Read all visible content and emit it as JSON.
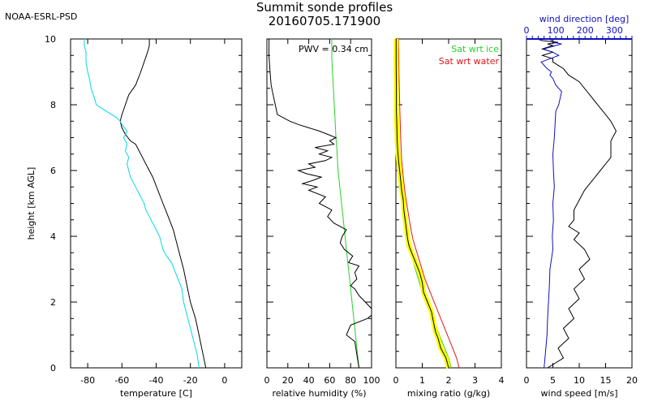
{
  "header": {
    "org": "NOAA-ESRL-PSD",
    "title_line1": "Summit sonde profiles",
    "title_line2": "20160705.171900"
  },
  "colors": {
    "black": "#000000",
    "cyan": "#00d8e8",
    "green": "#28d028",
    "red": "#e01818",
    "blue": "#1010c0",
    "yellow": "#ffff00"
  },
  "chart_data": [
    {
      "id": "temperature",
      "type": "line",
      "xlabel": "temperature [C]",
      "ylabel": "height [km AGL]",
      "xlim": [
        -90,
        10
      ],
      "ylim": [
        0,
        10
      ],
      "xticks": [
        -80,
        -60,
        -40,
        -20,
        0
      ],
      "yticks": [
        0,
        2,
        4,
        6,
        8,
        10
      ],
      "series": [
        {
          "name": "temperature",
          "color": "#000000",
          "x": [
            -11,
            -13,
            -15,
            -17,
            -20,
            -22,
            -24,
            -26,
            -28,
            -30,
            -33,
            -36,
            -39,
            -42,
            -45,
            -48,
            -52,
            -55,
            -58,
            -60,
            -61,
            -60,
            -58,
            -56,
            -52,
            -49,
            -47,
            -45,
            -44,
            -44
          ],
          "y": [
            0,
            0.5,
            1.0,
            1.5,
            2.0,
            2.5,
            3.0,
            3.4,
            3.8,
            4.2,
            4.6,
            5.0,
            5.4,
            5.8,
            6.1,
            6.4,
            6.8,
            6.9,
            7.1,
            7.3,
            7.5,
            7.7,
            8.0,
            8.3,
            8.6,
            9.0,
            9.3,
            9.6,
            9.8,
            10
          ]
        },
        {
          "name": "dewpoint",
          "color": "#00d8e8",
          "x": [
            -15,
            -16,
            -18,
            -20,
            -22,
            -24,
            -25,
            -28,
            -31,
            -34,
            -36,
            -37,
            -38,
            -40,
            -42,
            -44,
            -46,
            -47,
            -49,
            -51,
            -53,
            -55,
            -56,
            -57,
            -56,
            -58,
            -57,
            -59,
            -57,
            -60,
            -61,
            -63,
            -66,
            -69,
            -72,
            -75,
            -76,
            -78,
            -79,
            -80,
            -81,
            -81,
            -82,
            -82
          ],
          "y": [
            0,
            0.4,
            0.8,
            1.2,
            1.6,
            2.0,
            2.4,
            2.8,
            3.2,
            3.4,
            3.6,
            3.8,
            4.0,
            4.2,
            4.4,
            4.6,
            4.8,
            5.0,
            5.2,
            5.4,
            5.6,
            5.8,
            6.0,
            6.2,
            6.4,
            6.6,
            6.8,
            7.0,
            7.2,
            7.4,
            7.5,
            7.6,
            7.7,
            7.8,
            7.9,
            8.0,
            8.2,
            8.5,
            8.8,
            9.0,
            9.3,
            9.6,
            9.8,
            10
          ]
        }
      ]
    },
    {
      "id": "relative_humidity",
      "type": "line",
      "xlabel": "relative humidity (%)",
      "xlim": [
        0,
        100
      ],
      "ylim": [
        0,
        10
      ],
      "xticks": [
        0,
        20,
        40,
        60,
        80,
        100
      ],
      "annotation": "PWV = 0.34 cm",
      "series": [
        {
          "name": "rh_ice",
          "color": "#28d028",
          "x": [
            88,
            86,
            84,
            82,
            80,
            78,
            76,
            74,
            72,
            70,
            68,
            67,
            66,
            65,
            64,
            63,
            62,
            62
          ],
          "y": [
            0,
            0.6,
            1.2,
            1.8,
            2.4,
            3.0,
            3.6,
            4.2,
            4.8,
            5.4,
            6.0,
            6.6,
            7.0,
            7.6,
            8.2,
            8.8,
            9.4,
            10
          ]
        },
        {
          "name": "rh",
          "color": "#000000",
          "x": [
            88,
            86,
            84,
            76,
            80,
            96,
            100,
            100,
            94,
            88,
            84,
            80,
            86,
            84,
            88,
            78,
            82,
            74,
            70,
            72,
            76,
            64,
            58,
            62,
            50,
            56,
            40,
            48,
            34,
            44,
            52,
            38,
            30,
            46,
            40,
            56,
            62,
            50,
            58,
            46,
            64,
            60,
            66,
            58,
            50,
            40,
            30,
            22,
            16,
            10,
            8,
            6,
            4,
            3,
            2,
            2
          ],
          "y": [
            0,
            0.4,
            0.8,
            1.0,
            1.3,
            1.5,
            1.6,
            1.8,
            2.0,
            2.2,
            2.4,
            2.5,
            2.7,
            2.9,
            3.1,
            3.2,
            3.4,
            3.6,
            3.8,
            4.0,
            4.2,
            4.4,
            4.6,
            4.8,
            5.0,
            5.2,
            5.4,
            5.5,
            5.6,
            5.7,
            5.8,
            5.9,
            6.0,
            6.1,
            6.2,
            6.3,
            6.4,
            6.5,
            6.6,
            6.7,
            6.8,
            6.9,
            7.0,
            7.1,
            7.2,
            7.3,
            7.4,
            7.5,
            7.6,
            7.7,
            8.0,
            8.3,
            8.6,
            9.0,
            9.5,
            10
          ]
        }
      ]
    },
    {
      "id": "mixing_ratio",
      "type": "line",
      "xlabel": "mixing ratio (g/kg)",
      "xlim": [
        0,
        4
      ],
      "ylim": [
        0,
        10
      ],
      "xticks": [
        0,
        1,
        2,
        3,
        4
      ],
      "legend": [
        "Sat wrt ice",
        "Sat wrt water"
      ],
      "series": [
        {
          "name": "Sat wrt water",
          "color": "#e01818",
          "x": [
            2.4,
            2.3,
            2.1,
            1.9,
            1.7,
            1.5,
            1.3,
            1.1,
            0.95,
            0.8,
            0.65,
            0.55,
            0.45,
            0.35,
            0.28,
            0.22,
            0.18,
            0.15,
            0.12,
            0.1
          ],
          "y": [
            0,
            0.3,
            0.7,
            1.1,
            1.5,
            1.9,
            2.3,
            2.7,
            3.1,
            3.5,
            3.9,
            4.3,
            4.8,
            5.3,
            5.8,
            6.3,
            7.0,
            7.8,
            8.8,
            10
          ]
        },
        {
          "name": "Sat wrt ice",
          "color": "#28d028",
          "x": [
            2.1,
            2.0,
            1.8,
            1.6,
            1.4,
            1.2,
            1.0,
            0.85,
            0.7,
            0.55,
            0.45,
            0.35,
            0.27,
            0.2,
            0.15,
            0.11,
            0.08,
            0.06,
            0.04,
            0.03
          ],
          "y": [
            0,
            0.3,
            0.7,
            1.1,
            1.5,
            1.9,
            2.3,
            2.7,
            3.1,
            3.5,
            3.9,
            4.3,
            4.8,
            5.3,
            5.8,
            6.3,
            7.0,
            7.8,
            8.8,
            10
          ]
        },
        {
          "name": "mixing ratio",
          "color": "#000000",
          "x": [
            2.0,
            1.9,
            1.7,
            1.6,
            1.5,
            1.45,
            1.4,
            1.35,
            1.2,
            1.05,
            1.0,
            0.9,
            0.8,
            0.7,
            0.6,
            0.5,
            0.45,
            0.4,
            0.35,
            0.3,
            0.28,
            0.22,
            0.18,
            0.14,
            0.1,
            0.07,
            0.05,
            0.04,
            0.03,
            0.02,
            0.02,
            0.02,
            0.01,
            0.01
          ],
          "y": [
            0,
            0.3,
            0.6,
            0.9,
            1.1,
            1.3,
            1.5,
            1.7,
            2.0,
            2.3,
            2.6,
            2.9,
            3.1,
            3.3,
            3.5,
            3.7,
            3.9,
            4.2,
            4.5,
            4.8,
            5.1,
            5.4,
            5.7,
            6.0,
            6.3,
            6.6,
            6.9,
            7.2,
            7.5,
            7.8,
            8.2,
            8.6,
            9.2,
            10
          ]
        }
      ]
    },
    {
      "id": "wind",
      "type": "line",
      "xlabel": "wind speed [m/s]",
      "xlim": [
        0,
        20
      ],
      "ylim": [
        0,
        10
      ],
      "xticks": [
        0,
        5,
        10,
        15,
        20
      ],
      "top_axis": {
        "label": "wind direction [deg]",
        "range": [
          0,
          360
        ],
        "ticks": [
          0,
          100,
          200,
          300
        ]
      },
      "series": [
        {
          "name": "wind speed",
          "color": "#000000",
          "x": [
            4,
            7,
            6,
            8,
            7,
            9,
            8,
            10,
            9,
            11,
            10,
            12,
            11,
            9,
            10,
            8,
            9,
            9,
            10,
            11,
            12,
            13,
            14,
            15,
            16,
            16,
            16,
            17,
            16,
            15,
            14,
            13,
            12,
            11,
            10,
            9,
            8,
            7,
            6,
            5,
            5,
            3,
            5,
            3,
            5,
            4,
            6,
            3,
            2
          ],
          "y": [
            0,
            0.3,
            0.6,
            0.9,
            1.2,
            1.5,
            1.8,
            2.1,
            2.4,
            2.7,
            3.0,
            3.3,
            3.6,
            3.9,
            4.1,
            4.3,
            4.5,
            4.8,
            5.1,
            5.4,
            5.6,
            5.8,
            6.0,
            6.2,
            6.4,
            6.6,
            6.9,
            7.2,
            7.5,
            7.7,
            7.9,
            8.1,
            8.3,
            8.5,
            8.7,
            8.8,
            8.9,
            9.1,
            9.2,
            9.3,
            9.4,
            9.5,
            9.6,
            9.7,
            9.8,
            9.85,
            9.9,
            9.95,
            10
          ]
        },
        {
          "name": "wind direction",
          "color": "#1010c0",
          "axis": "top",
          "x": [
            60,
            65,
            70,
            72,
            75,
            78,
            80,
            85,
            90,
            88,
            92,
            90,
            95,
            92,
            90,
            95,
            98,
            100,
            110,
            115,
            120,
            100,
            90,
            80,
            85,
            70,
            60,
            50,
            80,
            110,
            90,
            70,
            60,
            80,
            100,
            120,
            90,
            80
          ],
          "y": [
            0,
            0.5,
            1.0,
            1.5,
            2.0,
            2.5,
            3.0,
            3.3,
            3.6,
            4.0,
            4.5,
            5.0,
            5.5,
            6.0,
            6.5,
            7.0,
            7.5,
            7.8,
            8.0,
            8.2,
            8.4,
            8.6,
            8.8,
            8.9,
            9.0,
            9.1,
            9.2,
            9.3,
            9.4,
            9.5,
            9.6,
            9.65,
            9.7,
            9.75,
            9.8,
            9.85,
            9.9,
            10
          ]
        }
      ]
    }
  ]
}
